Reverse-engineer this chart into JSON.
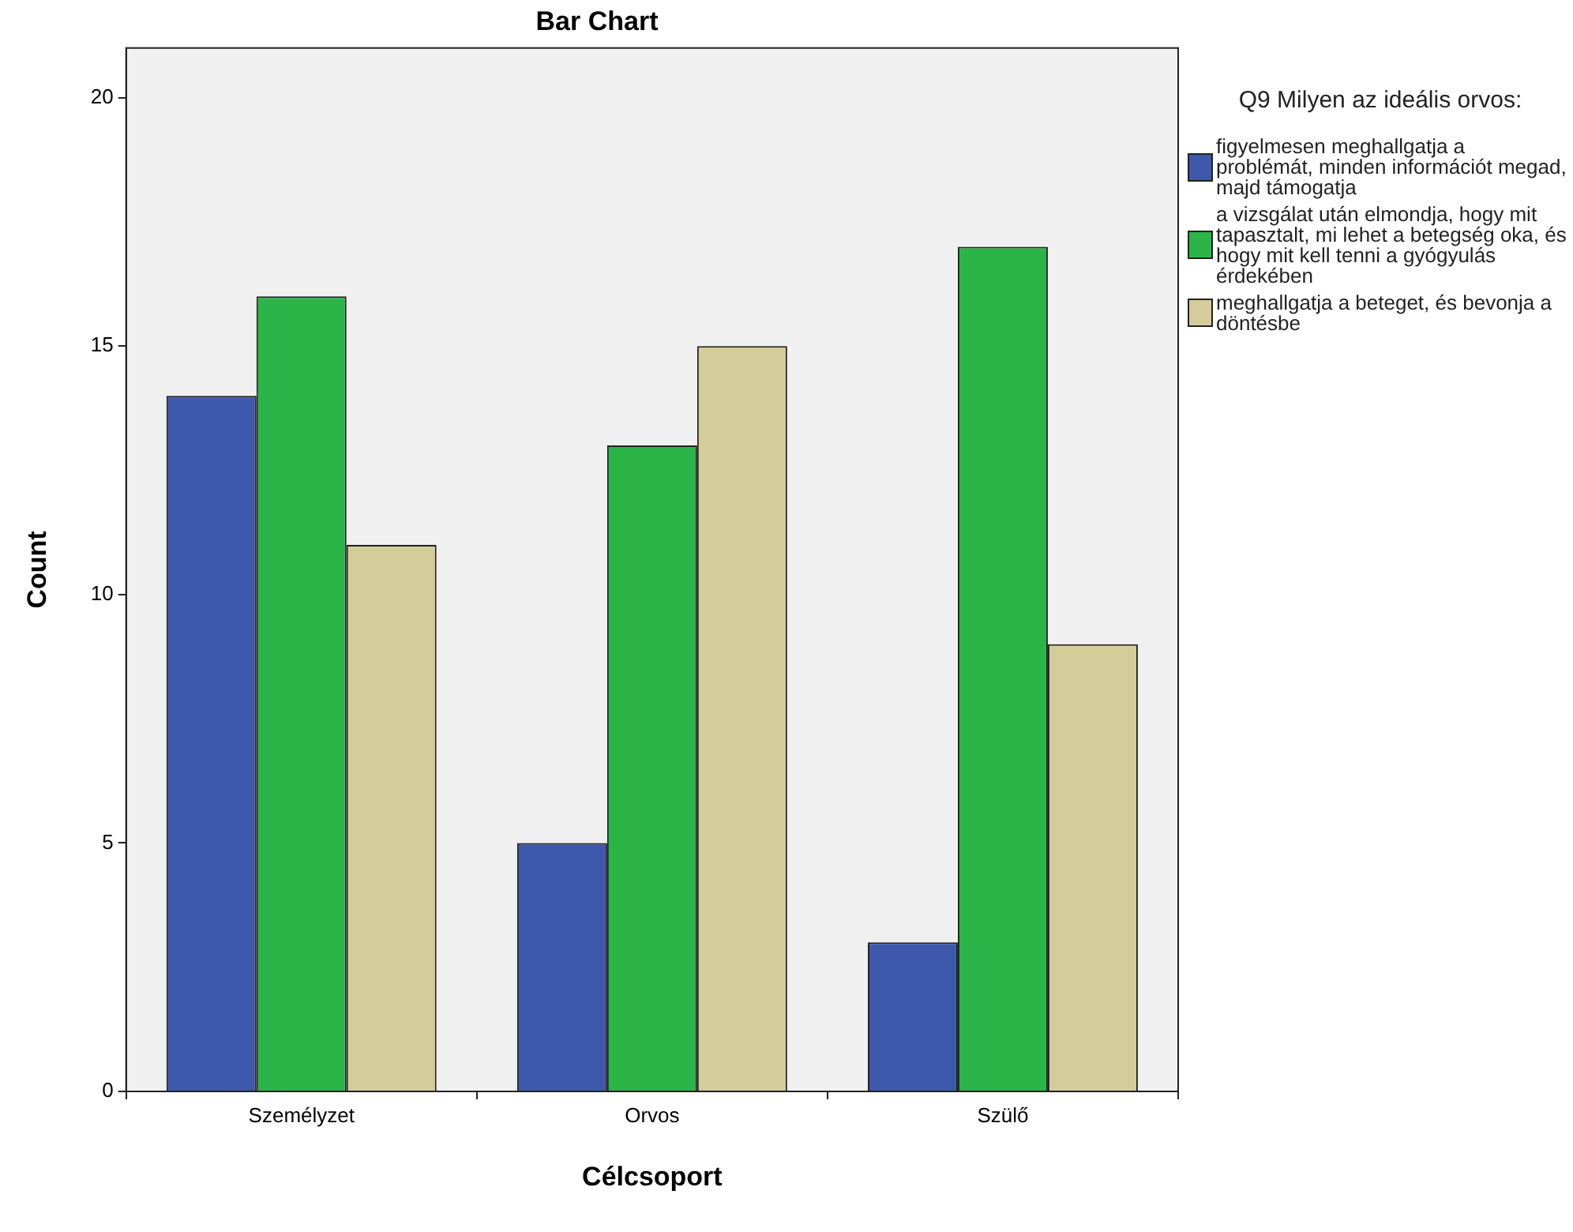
{
  "chart_data": {
    "type": "bar",
    "title": "Bar Chart",
    "xlabel": "Célcsoport",
    "ylabel": "Count",
    "legend_title": "Q9 Milyen az ideális orvos:",
    "categories": [
      "Személyzet",
      "Orvos",
      "Szülő"
    ],
    "series": [
      {
        "name": "figyelmesen meghallgatja a problémát, minden információt megad, majd támogatja",
        "color": "#3e58ac",
        "values": [
          14,
          5,
          3
        ]
      },
      {
        "name": "a vizsgálat után elmondja, hogy mit tapasztalt, mi lehet a betegség oka, és hogy mit kell tenni a gyógyulás érdekében",
        "color": "#2bb548",
        "values": [
          16,
          13,
          17
        ]
      },
      {
        "name": "meghallgatja a beteget, és bevonja a döntésbe",
        "color": "#d4cc99",
        "values": [
          11,
          15,
          9
        ]
      }
    ],
    "ylim": [
      0,
      21
    ],
    "yticks": [
      0,
      5,
      10,
      15,
      20
    ],
    "grid": false,
    "legend": "right"
  }
}
